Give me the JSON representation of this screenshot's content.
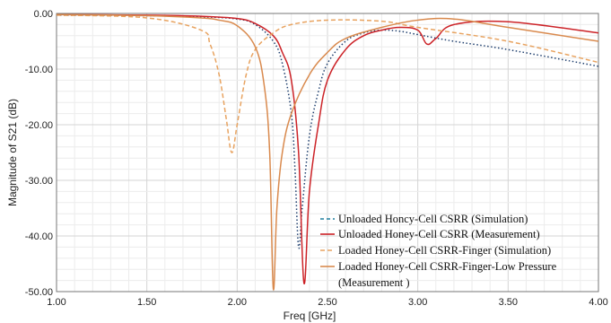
{
  "chart_data": {
    "type": "line",
    "xlabel": "Freq [GHz]",
    "ylabel": "Magnitude of S21 (dB)",
    "xlim": [
      1.0,
      4.0
    ],
    "ylim": [
      -50.0,
      0.0
    ],
    "xticks": [
      "1.00",
      "1.50",
      "2.00",
      "2.50",
      "3.00",
      "3.50",
      "4.00"
    ],
    "yticks": [
      "0.00",
      "-10.00",
      "-20.00",
      "-30.00",
      "-40.00",
      "-50.00"
    ],
    "grid": true,
    "legend_position": "bottom-right",
    "series": [
      {
        "name": "Unloaded Honcy-Cell CSRR (Simulation)",
        "color": "#1f3f6e",
        "dash": "dotted",
        "x": [
          1.0,
          1.5,
          1.8,
          2.0,
          2.1,
          2.2,
          2.25,
          2.3,
          2.32,
          2.34,
          2.36,
          2.4,
          2.45,
          2.5,
          2.6,
          2.7,
          2.8,
          2.9,
          3.0,
          3.2,
          3.5,
          4.0
        ],
        "y": [
          -0.3,
          -0.4,
          -0.6,
          -1.0,
          -2.0,
          -5.0,
          -9.0,
          -18.0,
          -28.0,
          -42.0,
          -35.0,
          -22.0,
          -14.0,
          -9.0,
          -5.0,
          -3.5,
          -3.0,
          -3.2,
          -3.8,
          -5.0,
          -6.5,
          -9.5
        ]
      },
      {
        "name": "Unloaded Honey-Cell CSRR (Measurement)",
        "color": "#cc2227",
        "dash": "solid",
        "x": [
          1.0,
          1.5,
          1.8,
          2.0,
          2.1,
          2.2,
          2.25,
          2.3,
          2.34,
          2.37,
          2.4,
          2.45,
          2.5,
          2.6,
          2.7,
          2.8,
          2.9,
          3.0,
          3.05,
          3.1,
          3.2,
          3.5,
          4.0
        ],
        "y": [
          -0.2,
          -0.3,
          -0.5,
          -0.9,
          -1.8,
          -4.0,
          -7.0,
          -12.0,
          -25.0,
          -48.5,
          -32.0,
          -20.0,
          -12.0,
          -6.5,
          -4.0,
          -3.0,
          -2.5,
          -3.0,
          -5.5,
          -4.5,
          -2.0,
          -1.5,
          -3.5
        ]
      },
      {
        "name": "Loaded Honey-Cell CSRR-Finger (Simulation)",
        "color": "#e8a360",
        "dash": "dashed",
        "x": [
          1.0,
          1.5,
          1.8,
          1.85,
          1.9,
          1.94,
          1.97,
          2.0,
          2.05,
          2.1,
          2.2,
          2.3,
          2.5,
          2.8,
          3.0,
          3.5,
          4.0
        ],
        "y": [
          -0.3,
          -0.8,
          -3.0,
          -5.5,
          -11.0,
          -19.0,
          -25.0,
          -20.0,
          -11.0,
          -6.5,
          -3.5,
          -2.0,
          -1.2,
          -1.4,
          -2.5,
          -5.0,
          -8.8
        ]
      },
      {
        "name": "Loaded Honey-Cell CSRR-Finger-Low Pressure (Measurement)",
        "color": "#d98a4e",
        "dash": "solid",
        "x": [
          1.0,
          1.5,
          1.8,
          1.9,
          2.0,
          2.1,
          2.15,
          2.18,
          2.2,
          2.22,
          2.25,
          2.3,
          2.4,
          2.5,
          2.6,
          2.8,
          3.0,
          3.2,
          3.5,
          4.0
        ],
        "y": [
          -0.2,
          -0.4,
          -0.8,
          -1.2,
          -2.2,
          -6.0,
          -13.0,
          -25.0,
          -49.5,
          -35.0,
          -25.0,
          -18.0,
          -11.0,
          -7.0,
          -4.5,
          -2.5,
          -1.2,
          -1.0,
          -2.5,
          -5.0
        ]
      }
    ],
    "legend_lines": [
      "Unloaded Honcy-Cell CSRR (Simulation)",
      "Unloaded Honey-Cell CSRR (Measurement)",
      "Loaded Honey-Cell CSRR-Finger (Simulation)",
      "Loaded Honey-Cell CSRR-Finger-Low Pressure",
      "(Measurement )"
    ]
  }
}
